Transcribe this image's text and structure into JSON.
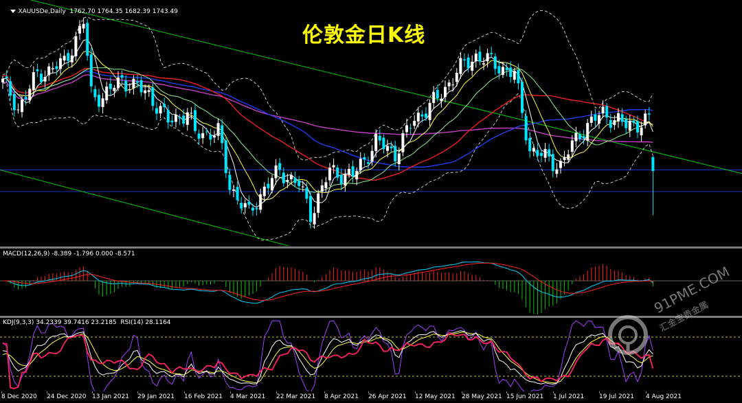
{
  "title_overlay": "伦敦金日K线",
  "main": {
    "header": "XAUUSDe,Daily  1762.70 1764.35 1682.39 1743.49",
    "menu_icon": "triangle-down-icon"
  },
  "macd": {
    "header": "MACD(12,26,9) -8.389 -1.796 0.000 -8.571"
  },
  "kdj": {
    "header": "KDJ(9,3,3) 34.2339 39.7416 23.2185  RSI(14) 28.1164"
  },
  "watermark": {
    "brand": "91PME.COM",
    "sub": "汇金宝贵金属"
  },
  "xaxis_labels": [
    "8 Dec 2020",
    "24 Dec 2020",
    "13 Jan 2021",
    "29 Jan 2021",
    "16 Feb 2021",
    "4 Mar 2021",
    "22 Mar 2021",
    "8 Apr 2021",
    "26 Apr 2021",
    "12 May 2021",
    "28 May 2021",
    "15 Jun 2021",
    "1 Jul 2021",
    "19 Jul 2021",
    "4 Aug 2021"
  ],
  "colors": {
    "bull": "#ffffff",
    "bear": "#00e5ff",
    "ma_fast": "#ffffff",
    "ma_mid": "#ffff40",
    "ma_slow": "#90ee90",
    "ma_red": "#ff2020",
    "ma_blue": "#2040ff",
    "ma_violet": "#d040d0",
    "bollinger": "#c8c8c8",
    "channel": "#00c800",
    "hline": "#1830c8",
    "macd_pos": "#ff2020",
    "macd_neg": "#00c800",
    "macd_line": "#00d0ff",
    "signal_line": "#ff2020",
    "k": "#ffffff",
    "d": "#ffff40",
    "j": "#a040ff",
    "rsi": "#ff2060",
    "level": "#c8c832"
  },
  "chart_data": {
    "type": "candlestick",
    "symbol": "XAUUSDe",
    "timeframe": "Daily",
    "last_bar": {
      "open": 1762.7,
      "high": 1764.35,
      "low": 1682.39,
      "close": 1743.49
    },
    "close_path": [
      [
        "2020-12-08",
        1866
      ],
      [
        "2020-12-14",
        1830
      ],
      [
        "2020-12-21",
        1876
      ],
      [
        "2020-12-30",
        1893
      ],
      [
        "2021-01-06",
        1950
      ],
      [
        "2021-01-08",
        1850
      ],
      [
        "2021-01-13",
        1846
      ],
      [
        "2021-01-20",
        1870
      ],
      [
        "2021-01-29",
        1850
      ],
      [
        "2021-02-05",
        1812
      ],
      [
        "2021-02-12",
        1824
      ],
      [
        "2021-02-16",
        1795
      ],
      [
        "2021-02-24",
        1797
      ],
      [
        "2021-03-01",
        1723
      ],
      [
        "2021-03-08",
        1683
      ],
      [
        "2021-03-12",
        1720
      ],
      [
        "2021-03-18",
        1743
      ],
      [
        "2021-03-25",
        1725
      ],
      [
        "2021-03-30",
        1684
      ],
      [
        "2021-04-06",
        1743
      ],
      [
        "2021-04-14",
        1736
      ],
      [
        "2021-04-22",
        1784
      ],
      [
        "2021-04-29",
        1768
      ],
      [
        "2021-05-06",
        1815
      ],
      [
        "2021-05-14",
        1843
      ],
      [
        "2021-05-21",
        1881
      ],
      [
        "2021-05-28",
        1903
      ],
      [
        "2021-06-04",
        1891
      ],
      [
        "2021-06-11",
        1877
      ],
      [
        "2021-06-17",
        1773
      ],
      [
        "2021-06-29",
        1751
      ],
      [
        "2021-07-06",
        1797
      ],
      [
        "2021-07-14",
        1824
      ],
      [
        "2021-07-22",
        1806
      ],
      [
        "2021-07-30",
        1813
      ],
      [
        "2021-08-04",
        1811
      ],
      [
        "2021-08-06",
        1763
      ],
      [
        "2021-08-09",
        1743
      ]
    ],
    "macd": {
      "params": [
        12,
        26,
        9
      ],
      "values": [
        -8.389,
        -1.796,
        0.0,
        -8.571
      ]
    },
    "kdj": {
      "params": [
        9,
        3,
        3
      ],
      "K": 34.2339,
      "D": 39.7416,
      "J": 23.2185
    },
    "rsi": {
      "period": 14,
      "value": 28.1164
    },
    "price_range": [
      1640,
      1980
    ]
  }
}
